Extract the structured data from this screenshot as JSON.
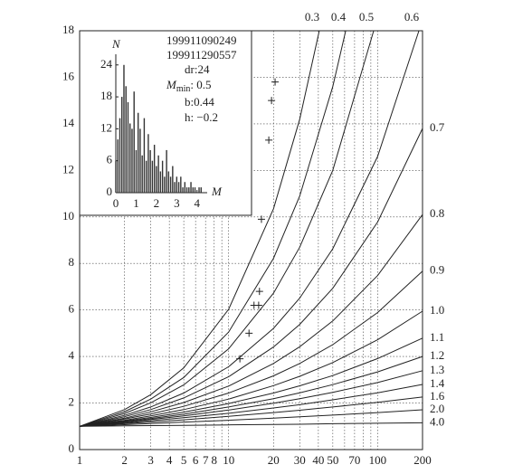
{
  "chart_data": [
    {
      "type": "line",
      "xscale": "log",
      "xlim": [
        1,
        200
      ],
      "ylim": [
        0,
        18
      ],
      "xticks": [
        1,
        2,
        3,
        4,
        5,
        6,
        7,
        8,
        10,
        20,
        30,
        40,
        50,
        70,
        100,
        200
      ],
      "x_minor_grid": [
        9,
        60,
        80,
        90
      ],
      "yticks": [
        0,
        2,
        4,
        6,
        8,
        10,
        12,
        14,
        16,
        18
      ],
      "grid": true,
      "color": "#222222",
      "series": [
        {
          "name": "0.3",
          "x": [
            1,
            2,
            3,
            5,
            10,
            20,
            30,
            40.6
          ],
          "values": [
            1,
            1.72,
            2.36,
            3.51,
            6.03,
            10.35,
            14.2,
            18
          ]
        },
        {
          "name": "0.4",
          "x": [
            1,
            2,
            3,
            5,
            10,
            20,
            30,
            50,
            61
          ],
          "values": [
            1,
            1.63,
            2.17,
            3.1,
            5.05,
            8.22,
            10.9,
            15.6,
            18
          ]
        },
        {
          "name": "0.5",
          "x": [
            1,
            2,
            3,
            5,
            10,
            20,
            30,
            50,
            94
          ],
          "values": [
            1,
            1.55,
            2.01,
            2.78,
            4.33,
            6.72,
            8.7,
            12.0,
            18
          ]
        },
        {
          "name": "0.6",
          "x": [
            1,
            2,
            3,
            5,
            10,
            20,
            30,
            50,
            100,
            189
          ],
          "values": [
            1,
            1.47,
            1.83,
            2.43,
            3.56,
            5.21,
            6.51,
            8.63,
            12.6,
            18
          ]
        },
        {
          "name": "0.7",
          "x": [
            1,
            2,
            3,
            5,
            10,
            20,
            30,
            50,
            100,
            200
          ],
          "values": [
            1,
            1.41,
            1.72,
            2.22,
            3.13,
            4.41,
            5.38,
            6.93,
            9.78,
            13.8
          ]
        },
        {
          "name": "0.8",
          "x": [
            1,
            2,
            3,
            5,
            10,
            20,
            30,
            50,
            100,
            200
          ],
          "values": [
            1,
            1.35,
            1.62,
            2.02,
            2.73,
            3.7,
            4.42,
            5.53,
            7.48,
            10.1
          ]
        },
        {
          "name": "0.9",
          "x": [
            1,
            2,
            3,
            5,
            10,
            20,
            30,
            50,
            100,
            200
          ],
          "values": [
            1,
            1.31,
            1.53,
            1.86,
            2.43,
            3.17,
            3.7,
            4.51,
            5.89,
            7.67
          ]
        },
        {
          "name": "1.0",
          "x": [
            1,
            2,
            3,
            5,
            10,
            20,
            30,
            50,
            100,
            200
          ],
          "values": [
            1,
            1.26,
            1.45,
            1.72,
            2.17,
            2.75,
            3.15,
            3.74,
            4.72,
            5.95
          ]
        },
        {
          "name": "1.1",
          "x": [
            1,
            2,
            3,
            5,
            10,
            20,
            30,
            50,
            100,
            200
          ],
          "values": [
            1,
            1.23,
            1.38,
            1.61,
            1.98,
            2.43,
            2.74,
            3.18,
            3.91,
            4.79
          ]
        },
        {
          "name": "1.2",
          "x": [
            1,
            2,
            3,
            5,
            10,
            20,
            30,
            50,
            100,
            200
          ],
          "values": [
            1,
            1.2,
            1.33,
            1.52,
            1.83,
            2.19,
            2.44,
            2.79,
            3.34,
            4.0
          ]
        },
        {
          "name": "1.3",
          "x": [
            1,
            2,
            3,
            5,
            10,
            20,
            30,
            50,
            100,
            200
          ],
          "values": [
            1,
            1.17,
            1.29,
            1.45,
            1.7,
            1.99,
            2.19,
            2.46,
            2.88,
            3.39
          ]
        },
        {
          "name": "1.4",
          "x": [
            1,
            2,
            3,
            5,
            10,
            20,
            30,
            50,
            100,
            200
          ],
          "values": [
            1,
            1.14,
            1.24,
            1.37,
            1.56,
            1.79,
            1.93,
            2.14,
            2.44,
            2.8
          ]
        },
        {
          "name": "1.6",
          "x": [
            1,
            2,
            3,
            5,
            10,
            20,
            30,
            50,
            100,
            200
          ],
          "values": [
            1,
            1.11,
            1.18,
            1.28,
            1.43,
            1.59,
            1.69,
            1.83,
            2.03,
            2.26
          ]
        },
        {
          "name": "2.0",
          "x": [
            1,
            2,
            3,
            5,
            10,
            20,
            30,
            50,
            100,
            200
          ],
          "values": [
            1,
            1.07,
            1.12,
            1.18,
            1.26,
            1.35,
            1.41,
            1.48,
            1.59,
            1.71
          ]
        },
        {
          "name": "4.0",
          "x": [
            1,
            2,
            3,
            5,
            10,
            20,
            30,
            50,
            100,
            200
          ],
          "values": [
            1,
            1.02,
            1.03,
            1.04,
            1.06,
            1.08,
            1.09,
            1.11,
            1.13,
            1.15
          ]
        }
      ],
      "points": {
        "x": [
          11.9,
          13.7,
          14.8,
          15.9,
          16.1,
          16.6,
          18.6,
          19.4,
          20.5
        ],
        "y": [
          3.9,
          5.0,
          6.2,
          6.2,
          6.8,
          9.9,
          13.3,
          15.0,
          15.8
        ]
      }
    },
    {
      "type": "bar",
      "xlabel": "M",
      "ylabel": "N",
      "xlim": [
        0,
        4.5
      ],
      "ylim": [
        0,
        26
      ],
      "xticks": [
        0,
        1,
        2,
        3,
        4
      ],
      "yticks": [
        0,
        6,
        12,
        18,
        24
      ],
      "color": "#333333",
      "x": [
        0.0,
        0.1,
        0.2,
        0.3,
        0.4,
        0.5,
        0.6,
        0.7,
        0.8,
        0.9,
        1.0,
        1.1,
        1.2,
        1.3,
        1.4,
        1.5,
        1.6,
        1.7,
        1.8,
        1.9,
        2.0,
        2.1,
        2.2,
        2.3,
        2.4,
        2.5,
        2.6,
        2.7,
        2.8,
        2.9,
        3.0,
        3.1,
        3.2,
        3.3,
        3.4,
        3.5,
        3.6,
        3.7,
        3.8,
        3.9,
        4.0,
        4.1,
        4.2
      ],
      "values": [
        6,
        10,
        14,
        18,
        24,
        20,
        17,
        13,
        12,
        19,
        8,
        15,
        12,
        7,
        14,
        6,
        11,
        8,
        6,
        9,
        5,
        7,
        4,
        6,
        3,
        8,
        4,
        3,
        5,
        2,
        3,
        2,
        3,
        1,
        2,
        1,
        1,
        2,
        1,
        1,
        0,
        1,
        1
      ],
      "annotations": [
        "199911090249",
        "199911290557",
        "dr:24"
      ],
      "mmin": {
        "symbol": "M",
        "subscript": "min",
        "value": ": 0.5"
      },
      "params": [
        "b:0.44",
        "h: −0.2"
      ]
    }
  ]
}
